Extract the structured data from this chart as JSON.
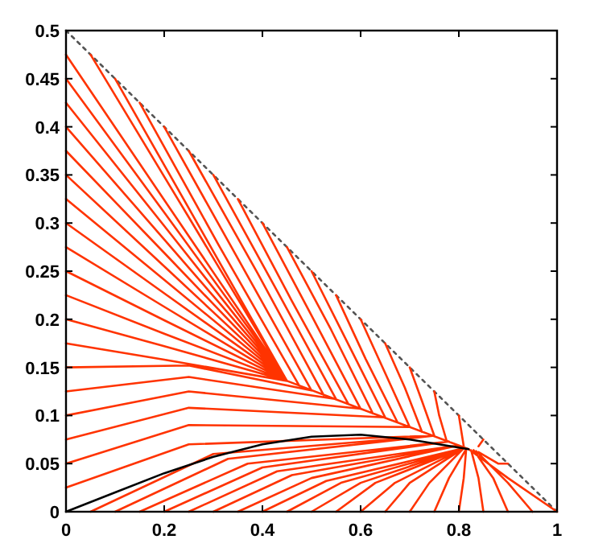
{
  "chart_data": {
    "type": "line",
    "xlim": [
      0,
      1
    ],
    "ylim": [
      0,
      0.5
    ],
    "xticks": [
      0,
      0.2,
      0.4,
      0.6,
      0.8,
      1
    ],
    "yticks": [
      0,
      0.05,
      0.1,
      0.15,
      0.2,
      0.25,
      0.3,
      0.35,
      0.4,
      0.45,
      0.5
    ],
    "grid": false,
    "marker": "none",
    "series": [
      {
        "color": "#555555",
        "line_style": "dashed",
        "x": [
          0,
          1
        ],
        "values": [
          0.5,
          0
        ]
      },
      {
        "color": "#ff3300",
        "x": [
          0,
          0.2,
          0.45,
          0.6,
          0.82,
          null,
          0,
          0.2,
          0.45,
          null,
          0,
          0.2,
          0.45,
          null,
          0,
          0.2,
          0.45,
          null,
          0,
          0.2,
          0.45,
          null,
          0,
          0.2,
          0.45,
          null,
          0,
          0.2,
          0.45,
          null,
          0,
          0.2,
          0.45,
          null,
          0,
          0.2,
          0.45,
          null,
          0,
          0.2,
          0.45,
          null,
          0,
          0.2,
          0.45,
          null,
          0,
          0.2,
          0.45,
          null,
          0,
          0.2,
          0.45,
          null,
          0,
          0.25,
          0.5,
          null,
          0,
          0.25,
          0.55,
          null,
          0,
          0.25,
          0.6,
          null,
          0,
          0.25,
          0.65,
          null,
          0,
          0.25,
          0.7,
          null,
          0,
          0.25,
          0.75,
          null,
          0.05,
          0.3,
          0.75,
          null,
          0.1,
          0.33,
          0.75,
          null,
          0.15,
          0.37,
          0.78,
          null,
          0.2,
          0.4,
          0.78,
          null,
          0.25,
          0.43,
          0.8,
          null,
          0.3,
          0.46,
          0.8,
          null,
          0.35,
          0.5,
          0.8,
          null,
          0.4,
          0.53,
          0.81,
          null,
          0.45,
          0.56,
          0.81,
          null,
          0.5,
          0.6,
          0.81,
          null,
          0.55,
          0.63,
          0.81,
          null,
          0.6,
          0.67,
          0.81,
          null,
          0.65,
          0.7,
          0.81,
          null,
          0.7,
          0.74,
          0.81,
          null,
          0.75,
          0.78,
          0.815,
          null,
          0.8,
          0.81,
          0.815,
          null,
          0.85,
          0.84,
          0.825,
          null,
          0.9,
          0.87,
          0.83,
          null,
          0.95,
          0.9,
          0.835,
          null,
          0.05,
          0.25,
          0.45,
          null,
          0.1,
          0.275,
          0.45,
          null,
          0.15,
          0.31,
          0.475,
          null,
          0.2,
          0.35,
          0.5,
          null,
          0.25,
          0.39,
          0.525,
          null,
          0.3,
          0.425,
          0.55,
          null,
          0.35,
          0.46,
          0.575,
          null,
          0.4,
          0.5,
          0.6,
          null,
          0.45,
          0.54,
          0.625,
          null,
          0.5,
          0.575,
          0.65,
          null,
          0.55,
          0.61,
          0.675,
          null,
          0.6,
          0.65,
          0.7,
          null,
          0.65,
          0.69,
          0.725,
          null,
          0.7,
          0.725,
          0.75,
          null,
          0.75,
          0.76,
          0.775,
          null,
          0.8,
          0.81,
          null,
          0.85,
          0.84,
          null,
          0.9,
          0.88,
          0.84,
          null,
          0.82,
          0.9,
          1
        ],
        "values": [
          0.475,
          0.324,
          0.136,
          0.107,
          0.065,
          null,
          0.45,
          0.311,
          0.136,
          null,
          0.425,
          0.297,
          0.136,
          null,
          0.4,
          0.283,
          0.136,
          null,
          0.375,
          0.269,
          0.136,
          null,
          0.35,
          0.255,
          0.136,
          null,
          0.325,
          0.241,
          0.136,
          null,
          0.3,
          0.227,
          0.136,
          null,
          0.275,
          0.213,
          0.136,
          null,
          0.25,
          0.199,
          0.136,
          null,
          0.225,
          0.185,
          0.136,
          null,
          0.2,
          0.172,
          0.136,
          null,
          0.175,
          0.158,
          0.136,
          null,
          0.15,
          0.152,
          0.126,
          null,
          0.125,
          0.14,
          0.117,
          null,
          0.1,
          0.125,
          0.107,
          null,
          0.075,
          0.108,
          0.098,
          null,
          0.05,
          0.09,
          0.088,
          null,
          0.025,
          0.07,
          0.079,
          null,
          0,
          0.06,
          0.079,
          null,
          0,
          0.055,
          0.079,
          null,
          0,
          0.05,
          0.073,
          null,
          0,
          0.046,
          0.073,
          null,
          0,
          0.042,
          0.069,
          null,
          0,
          0.038,
          0.069,
          null,
          0,
          0.035,
          0.069,
          null,
          0,
          0.032,
          0.066,
          null,
          0,
          0.03,
          0.066,
          null,
          0,
          0.03,
          0.066,
          null,
          0,
          0.03,
          0.066,
          null,
          0,
          0.03,
          0.066,
          null,
          0,
          0.03,
          0.066,
          null,
          0,
          0.03,
          0.066,
          null,
          0,
          0.035,
          0.065,
          null,
          0,
          0.035,
          0.065,
          null,
          0,
          0.035,
          0.064,
          null,
          0,
          0.035,
          0.064,
          null,
          0,
          0.03,
          0.063,
          null,
          0.475,
          0.306,
          0.136,
          null,
          0.45,
          0.293,
          0.136,
          null,
          0.425,
          0.278,
          0.131,
          null,
          0.4,
          0.263,
          0.126,
          null,
          0.375,
          0.248,
          0.121,
          null,
          0.35,
          0.234,
          0.117,
          null,
          0.325,
          0.219,
          0.112,
          null,
          0.3,
          0.204,
          0.107,
          null,
          0.275,
          0.189,
          0.102,
          null,
          0.25,
          0.174,
          0.098,
          null,
          0.225,
          0.159,
          0.093,
          null,
          0.2,
          0.144,
          0.088,
          null,
          0.175,
          0.129,
          0.083,
          null,
          0.15,
          0.115,
          0.079,
          null,
          0.125,
          0.1,
          0.074,
          null,
          0.1,
          0.068,
          null,
          0.075,
          0.068,
          null,
          0.05,
          0.05,
          0.062,
          null,
          0.065,
          0.035,
          0
        ]
      },
      {
        "color": "#000000",
        "x": [
          0,
          0.1,
          0.2,
          0.3,
          0.4,
          0.5,
          0.6,
          0.7,
          0.82
        ],
        "values": [
          0,
          0.02,
          0.04,
          0.057,
          0.07,
          0.078,
          0.08,
          0.075,
          0.065
        ]
      }
    ]
  }
}
